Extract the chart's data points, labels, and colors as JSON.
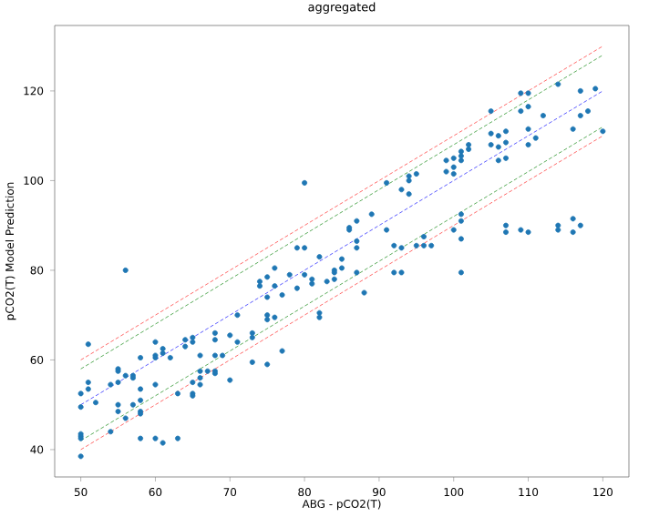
{
  "chart_data": {
    "type": "scatter",
    "title": "aggregated",
    "xlabel": "ABG - pCO2(T)",
    "ylabel": "pCO2(T) Model Prediction",
    "xlim": [
      46.5,
      123.5
    ],
    "ylim": [
      33.9,
      134.6
    ],
    "xticks": [
      50,
      60,
      70,
      80,
      90,
      100,
      110,
      120
    ],
    "yticks": [
      40,
      60,
      80,
      100,
      120
    ],
    "series": [
      {
        "color": "#1f77b4",
        "marker": "circle",
        "x": [
          50,
          50,
          50,
          50,
          50,
          50,
          51,
          51,
          51,
          52,
          54,
          54,
          55,
          55,
          55,
          55,
          55,
          56,
          56,
          56,
          57,
          57,
          57,
          58,
          58,
          58,
          58,
          58,
          58,
          60,
          60,
          60,
          60,
          60,
          61,
          61,
          61,
          62,
          63,
          63,
          64,
          64,
          65,
          65,
          65,
          65,
          65,
          66,
          66,
          66,
          66,
          67,
          68,
          68,
          68,
          68,
          68,
          69,
          70,
          70,
          71,
          71,
          73,
          73,
          73,
          74,
          74,
          75,
          75,
          75,
          75,
          75,
          76,
          76,
          76,
          77,
          77,
          78,
          79,
          79,
          80,
          80,
          80,
          81,
          81,
          82,
          82,
          82,
          83,
          84,
          84,
          84,
          85,
          85,
          86,
          86,
          87,
          87,
          87,
          87,
          88,
          89,
          91,
          91,
          92,
          92,
          93,
          93,
          93,
          94,
          94,
          94,
          95,
          95,
          96,
          96,
          97,
          99,
          99,
          100,
          100,
          100,
          100,
          101,
          101,
          101,
          101,
          101,
          101,
          101,
          102,
          102,
          105,
          105,
          105,
          106,
          106,
          106,
          107,
          107,
          107,
          107,
          107,
          109,
          109,
          109,
          110,
          110,
          110,
          110,
          110,
          111,
          112,
          114,
          114,
          114,
          116,
          116,
          116,
          117,
          117,
          117,
          118,
          119,
          120
        ],
        "values": [
          52.5,
          49.5,
          43.5,
          43,
          42.5,
          38.5,
          63.5,
          55,
          53.5,
          50.5,
          54.5,
          44,
          58,
          57.5,
          55,
          50,
          48.5,
          80,
          56.5,
          47,
          56.5,
          56,
          50,
          60.5,
          53.5,
          51,
          48.5,
          48,
          42.5,
          64,
          61,
          60.5,
          54.5,
          42.5,
          62.5,
          61.5,
          41.5,
          60.5,
          52.5,
          42.5,
          64.5,
          63,
          65,
          64,
          55,
          52.5,
          52,
          61,
          57.5,
          56,
          54.5,
          57.5,
          66,
          64.5,
          61,
          57.5,
          57,
          61,
          65.5,
          55.5,
          70,
          64,
          66,
          65,
          59.5,
          77.5,
          76.5,
          78.5,
          74,
          70,
          69,
          59,
          80.5,
          76.5,
          69.5,
          74.5,
          62,
          79,
          85,
          76,
          99.5,
          85,
          79,
          78,
          77,
          83,
          70.5,
          69.5,
          77.5,
          80,
          79.5,
          78,
          82.5,
          80.5,
          89.5,
          89,
          91,
          86.5,
          85,
          79.5,
          75,
          92.5,
          99.5,
          89,
          85.5,
          79.5,
          98,
          85,
          79.5,
          101,
          100,
          97,
          101.5,
          85.5,
          87.5,
          85.5,
          85.5,
          104.5,
          102,
          105,
          103,
          101.5,
          89,
          106.5,
          105.5,
          104.5,
          92.5,
          91,
          87,
          79.5,
          108,
          107,
          115.5,
          110.5,
          108,
          110,
          107.5,
          104.5,
          111,
          108.5,
          105,
          90,
          88.5,
          119.5,
          115.5,
          89,
          119.5,
          116.5,
          111.5,
          108,
          88.5,
          109.5,
          114.5,
          121.5,
          90,
          89,
          111.5,
          91.5,
          88.5,
          120,
          114.5,
          90,
          115.5,
          120.5,
          111
        ]
      },
      {
        "type": "line",
        "color": "#ff6b6b",
        "line_style": "dashed",
        "marker": "none",
        "x": [
          50,
          120
        ],
        "values": [
          60,
          130
        ]
      },
      {
        "type": "line",
        "color": "#5cad5c",
        "line_style": "dashed",
        "marker": "none",
        "x": [
          50,
          120
        ],
        "values": [
          58,
          128
        ]
      },
      {
        "type": "line",
        "color": "#5c5cff",
        "line_style": "dashed",
        "marker": "none",
        "x": [
          50,
          120
        ],
        "values": [
          50,
          120
        ]
      },
      {
        "type": "line",
        "color": "#5cad5c",
        "line_style": "dashed",
        "marker": "none",
        "x": [
          50,
          120
        ],
        "values": [
          42,
          112
        ]
      },
      {
        "type": "line",
        "color": "#ff6b6b",
        "line_style": "dashed",
        "marker": "none",
        "x": [
          50,
          120
        ],
        "values": [
          40,
          110
        ]
      }
    ]
  }
}
